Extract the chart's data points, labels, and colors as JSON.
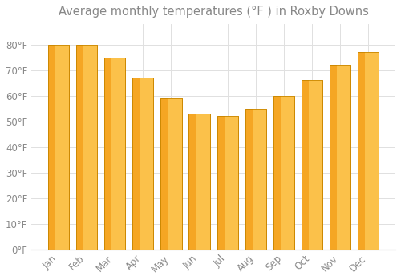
{
  "title": "Average monthly temperatures (°F ) in Roxby Downs",
  "months": [
    "Jan",
    "Feb",
    "Mar",
    "Apr",
    "May",
    "Jun",
    "Jul",
    "Aug",
    "Sep",
    "Oct",
    "Nov",
    "Dec"
  ],
  "values": [
    80,
    80,
    75,
    67,
    59,
    53,
    52,
    55,
    60,
    66,
    72,
    77
  ],
  "bar_color_left": "#F5A623",
  "bar_color_right": "#FFD060",
  "bar_edge_color": "#CC8800",
  "background_color": "#FFFFFF",
  "grid_color": "#E0E0E0",
  "text_color": "#888888",
  "ylim": [
    0,
    88
  ],
  "yticks": [
    0,
    10,
    20,
    30,
    40,
    50,
    60,
    70,
    80
  ],
  "title_fontsize": 10.5,
  "bar_width": 0.75
}
